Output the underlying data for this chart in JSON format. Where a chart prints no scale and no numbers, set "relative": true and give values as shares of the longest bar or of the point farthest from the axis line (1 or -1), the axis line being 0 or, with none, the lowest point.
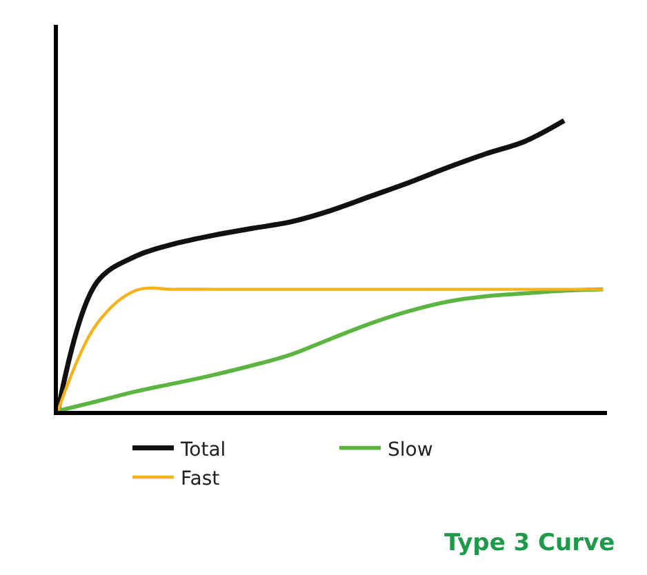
{
  "chart_data": {
    "type": "line",
    "relative": true,
    "categories": [
      null,
      null,
      null,
      null,
      null,
      null,
      null,
      null,
      null,
      null,
      null,
      null,
      null,
      null,
      null
    ],
    "series": [
      {
        "name": "Total",
        "color": "#111111",
        "values": [
          0,
          0.443,
          0.533,
          0.576,
          0.605,
          0.629,
          0.652,
          0.69,
          0.738,
          0.786,
          0.838,
          0.886,
          0.929,
          1,
          null
        ]
      },
      {
        "name": "Slow",
        "color": "#5bb540",
        "values": [
          0,
          0.033,
          0.067,
          0.095,
          0.124,
          0.157,
          0.195,
          0.248,
          0.3,
          0.343,
          0.376,
          0.395,
          0.405,
          0.414,
          0.419
        ]
      },
      {
        "name": "Fast",
        "color": "#f5b21b",
        "values": [
          0,
          0.3,
          0.415,
          0.419,
          0.419,
          0.419,
          0.419,
          0.419,
          0.419,
          0.419,
          0.419,
          0.419,
          0.419,
          0.419,
          0.419
        ]
      }
    ],
    "annotations": [
      "Type 3 Curve"
    ],
    "legend": "bottom",
    "marker": "none",
    "line_style": "solid"
  }
}
